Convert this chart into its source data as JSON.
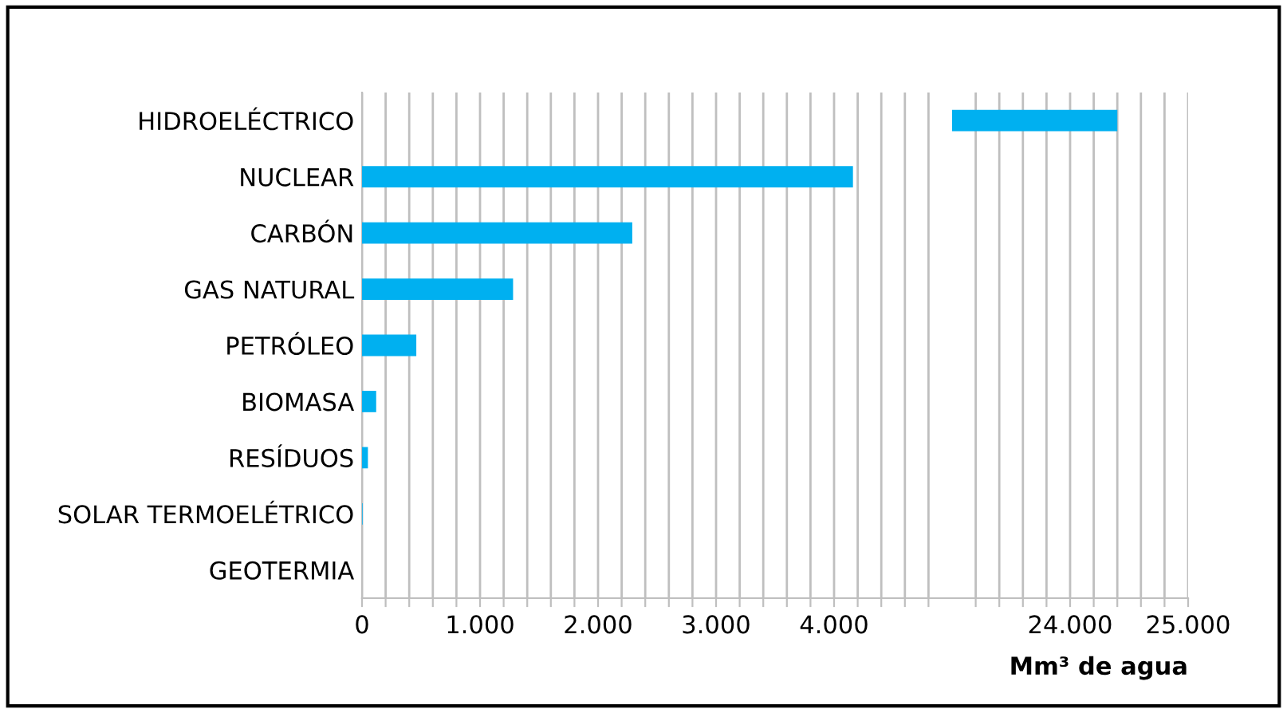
{
  "chart_data": [
    {
      "type": "bar",
      "orientation": "horizontal",
      "categories": [
        "HIDROELÉCTRICO",
        "NUCLEAR",
        "CARBÓN",
        "GAS NATURAL",
        "PETRÓLEO",
        "BIOMASA",
        "RESÍDUOS",
        "SOLAR TERMOELÉTRICO",
        "GEOTERMIA"
      ],
      "values": [
        null,
        4160,
        2290,
        1280,
        460,
        120,
        50,
        5,
        0
      ],
      "color": "#00b0f0",
      "xlim": [
        0,
        5000
      ],
      "xticks": [
        0,
        {
          "value": 200,
          "label": null
        },
        {
          "value": 400,
          "label": null
        },
        {
          "value": 600,
          "label": null
        },
        {
          "value": 800,
          "label": null
        },
        {
          "value": 1000,
          "label": "1.000"
        },
        {
          "value": 1200,
          "label": null
        },
        {
          "value": 1400,
          "label": null
        },
        {
          "value": 1600,
          "label": null
        },
        {
          "value": 1800,
          "label": null
        },
        {
          "value": 2000,
          "label": "2.000"
        },
        {
          "value": 2200,
          "label": null
        },
        {
          "value": 2400,
          "label": null
        },
        {
          "value": 2600,
          "label": null
        },
        {
          "value": 2800,
          "label": null
        },
        {
          "value": 3000,
          "label": "3.000"
        },
        {
          "value": 3200,
          "label": null
        },
        {
          "value": 3400,
          "label": null
        },
        {
          "value": 3600,
          "label": null
        },
        {
          "value": 3800,
          "label": null
        },
        {
          "value": 4000,
          "label": "4.000"
        },
        {
          "value": 4200,
          "label": null
        },
        {
          "value": 4400,
          "label": null
        },
        {
          "value": 4600,
          "label": null
        },
        {
          "value": 4800,
          "label": null
        }
      ],
      "grid": "x"
    },
    {
      "type": "bar",
      "orientation": "horizontal",
      "categories": [
        null,
        null,
        null,
        null,
        null,
        null,
        null,
        null,
        null
      ],
      "values": [
        24400,
        null,
        null,
        null,
        null,
        null,
        null,
        null,
        null
      ],
      "color": "#00b0f0",
      "xlim": [
        23000,
        25000
      ],
      "xticks": [
        {
          "value": 23200,
          "label": null
        },
        {
          "value": 23400,
          "label": null
        },
        {
          "value": 23600,
          "label": null
        },
        {
          "value": 23800,
          "label": null
        },
        {
          "value": 24000,
          "label": "24.000"
        },
        {
          "value": 24200,
          "label": null
        },
        {
          "value": 24400,
          "label": null
        },
        {
          "value": 24600,
          "label": null
        },
        {
          "value": 24800,
          "label": null
        },
        {
          "value": 25000,
          "label": "25.000"
        }
      ],
      "grid": "x",
      "tick_labels": "x",
      "xlabel": "Mm³ de agua"
    }
  ]
}
